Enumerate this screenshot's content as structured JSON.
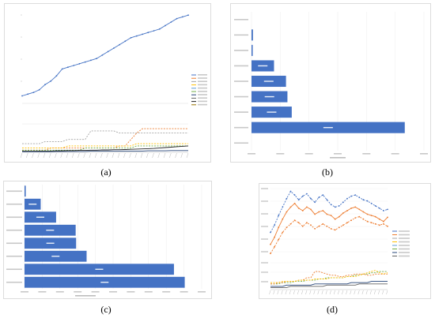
{
  "colors": {
    "blue": "#4472c4",
    "orange": "#ed7d31",
    "gray": "#a5a5a5",
    "yellow": "#ffc000",
    "lightblue": "#5b9bd5",
    "green": "#70ad47",
    "navy": "#264478",
    "darkgray": "#636363",
    "black": "#222222"
  },
  "captions": {
    "a": "(a)",
    "b": "(b)",
    "c": "(c)",
    "d": "(d)"
  },
  "chart_data": [
    {
      "id": "a",
      "type": "line",
      "title": "",
      "xlabel": "",
      "ylabel": "",
      "legend_position": "right",
      "grid": false,
      "top_series": {
        "name": "",
        "values": [
          5,
          7,
          9,
          12,
          18,
          22,
          28,
          36,
          38,
          40,
          42,
          44,
          46,
          48,
          52,
          56,
          60,
          64,
          68,
          72,
          74,
          76,
          78,
          80,
          82,
          86,
          90,
          94,
          96,
          98
        ]
      },
      "bottom_series": [
        {
          "name": "",
          "values": [
            4,
            4,
            4,
            4,
            5,
            5,
            5,
            5,
            6,
            6,
            6,
            6,
            10,
            10,
            10,
            10,
            10,
            9,
            9,
            9,
            9,
            9,
            9,
            9,
            9,
            9,
            9,
            9,
            9,
            9
          ]
        },
        {
          "name": "",
          "values": [
            1,
            1,
            1,
            1,
            1,
            2,
            2,
            2,
            2,
            2,
            2,
            2,
            2,
            2,
            2,
            2,
            2,
            3,
            3,
            6,
            9,
            11,
            11,
            11,
            11,
            11,
            11,
            11,
            11,
            11
          ]
        },
        {
          "name": "",
          "values": [
            2,
            2,
            2,
            2,
            2,
            2,
            2,
            2,
            3,
            3,
            3,
            3,
            3,
            3,
            3,
            3,
            3,
            3,
            3,
            3,
            4,
            4,
            4,
            4,
            4,
            4,
            4,
            4,
            4,
            4
          ]
        },
        {
          "name": "",
          "values": [
            1,
            1,
            1,
            1,
            1,
            1,
            1,
            1,
            1,
            1,
            1,
            2,
            2,
            2,
            2,
            2,
            2,
            2,
            2,
            2,
            3,
            3,
            3,
            3,
            3,
            3,
            3,
            3,
            3,
            3
          ]
        },
        {
          "name": "",
          "values": [
            0.5,
            0.5,
            0.5,
            0.6,
            0.6,
            0.6,
            0.7,
            0.7,
            0.8,
            0.8,
            0.9,
            0.9,
            1,
            1,
            1.1,
            1.1,
            1.2,
            1.2,
            1.3,
            1.4,
            1.5,
            1.6,
            1.7,
            1.8,
            2,
            2.2,
            2.4,
            2.6,
            2.8,
            3
          ]
        },
        {
          "name": "",
          "values": [
            0.3,
            0.3,
            0.3,
            0.3,
            0.3,
            0.3,
            0.4,
            0.4,
            0.4,
            0.4,
            0.4,
            0.4,
            0.5,
            0.5,
            0.5,
            0.5,
            0.5,
            0.6,
            0.6,
            0.6,
            0.6,
            0.6,
            0.7,
            0.7,
            0.7,
            0.7,
            0.8,
            0.8,
            0.8,
            0.8
          ]
        }
      ],
      "legend": [
        "",
        "",
        "",
        "",
        "",
        "",
        "",
        "",
        "",
        ""
      ]
    },
    {
      "id": "b",
      "type": "bar",
      "orientation": "horizontal",
      "title": "",
      "xlabel": "",
      "categories": [
        "",
        "",
        "",
        "",
        "",
        "",
        "",
        "",
        ""
      ],
      "values": [
        0,
        3,
        2.5,
        47,
        72,
        75,
        84,
        320,
        0
      ],
      "data_labels": [
        "",
        "",
        "",
        "",
        "",
        "",
        "",
        "",
        ""
      ],
      "xlim": [
        0,
        360
      ]
    },
    {
      "id": "c",
      "type": "bar",
      "orientation": "horizontal",
      "title": "",
      "xlabel": "",
      "categories": [
        "",
        "",
        "",
        "",
        "",
        "",
        "",
        ""
      ],
      "values": [
        0.8,
        10.5,
        20.5,
        33.2,
        33.5,
        40.3,
        97,
        104
      ],
      "data_labels": [
        "",
        "",
        "",
        "",
        "",
        "",
        "",
        ""
      ],
      "xlim": [
        0,
        115
      ]
    },
    {
      "id": "d",
      "type": "line",
      "title": "",
      "xlabel": "",
      "ylabel": "",
      "legend_position": "right",
      "top_series": [
        {
          "name": "",
          "values": [
            10,
            22,
            38,
            52,
            64,
            72,
            78,
            70,
            66,
            72,
            68,
            60,
            64,
            66,
            60,
            58,
            52,
            56,
            62,
            66,
            70,
            72,
            68,
            64,
            60,
            58,
            56,
            52,
            48,
            55
          ]
        },
        {
          "name": "",
          "values": [
            30,
            42,
            58,
            72,
            86,
            98,
            92,
            84,
            90,
            94,
            86,
            80,
            88,
            92,
            84,
            76,
            72,
            74,
            80,
            86,
            90,
            92,
            88,
            84,
            82,
            78,
            74,
            70,
            66,
            68
          ]
        },
        {
          "name": "",
          "values": [
            -5,
            6,
            18,
            30,
            38,
            44,
            50,
            46,
            40,
            46,
            42,
            36,
            40,
            44,
            40,
            36,
            34,
            38,
            42,
            46,
            50,
            54,
            56,
            52,
            48,
            46,
            44,
            42,
            44,
            40
          ]
        }
      ],
      "bottom_series": [
        {
          "name": "",
          "values": [
            4,
            4,
            4,
            5,
            5,
            5,
            6,
            6,
            6,
            7,
            7,
            7,
            8,
            8,
            9,
            9,
            9,
            9,
            9,
            10,
            10,
            11,
            11,
            12,
            12,
            13,
            13,
            14,
            14,
            14
          ]
        },
        {
          "name": "",
          "values": [
            4,
            4,
            5,
            5,
            6,
            6,
            6,
            7,
            7,
            9,
            9,
            14,
            14,
            13,
            12,
            11,
            11,
            10,
            10,
            11,
            11,
            12,
            12,
            12,
            11,
            11,
            12,
            12,
            12,
            12
          ]
        },
        {
          "name": "",
          "values": [
            5,
            5,
            5,
            6,
            6,
            6,
            6,
            7,
            7,
            7,
            7,
            8,
            8,
            8,
            8,
            9,
            9,
            9,
            9,
            10,
            10,
            10,
            11,
            12,
            13,
            14,
            15,
            13,
            12,
            13
          ]
        },
        {
          "name": "",
          "values": [
            2,
            2,
            2,
            2,
            3,
            3,
            3,
            3,
            3,
            3,
            3,
            4,
            4,
            4,
            4,
            4,
            4,
            4,
            4,
            4,
            5,
            5,
            5,
            5,
            5,
            6,
            6,
            6,
            6,
            6
          ]
        },
        {
          "name": "",
          "values": [
            1,
            1,
            1,
            1,
            1,
            2,
            2,
            2,
            2,
            2,
            2,
            2,
            2,
            2,
            3,
            3,
            3,
            3,
            3,
            3,
            3,
            3,
            4,
            4,
            4,
            4,
            4,
            4,
            4,
            4
          ]
        }
      ],
      "legend": [
        "",
        "",
        "",
        "",
        "",
        "",
        "",
        ""
      ]
    }
  ]
}
